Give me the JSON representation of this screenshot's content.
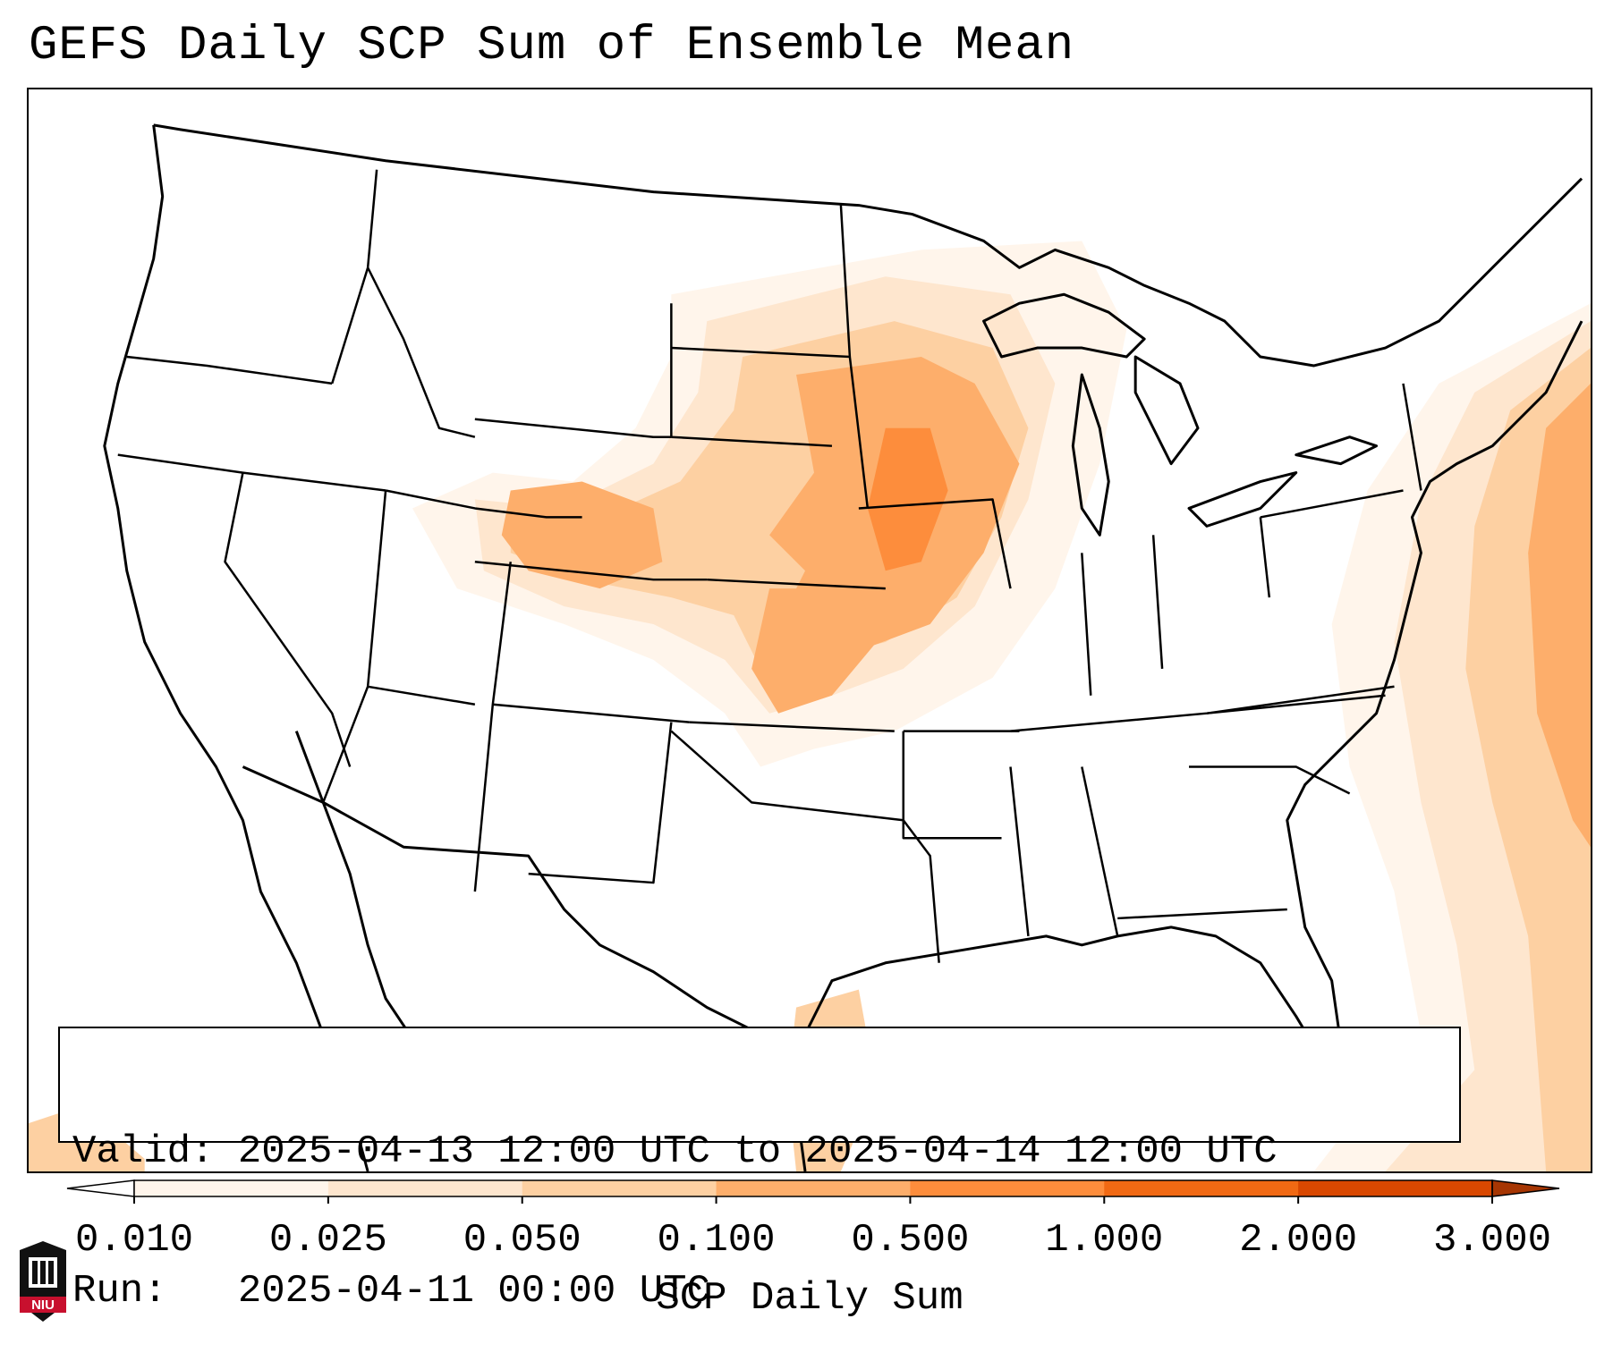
{
  "title": "GEFS Daily SCP Sum of Ensemble Mean",
  "info": {
    "valid_label": "Valid:",
    "valid_value": "2025-04-13 12:00 UTC to 2025-04-14 12:00 UTC",
    "run_label": "Run:",
    "run_value": "2025-04-11 00:00 UTC"
  },
  "colorbar": {
    "label": "SCP Daily Sum",
    "ticks": [
      "0.010",
      "0.025",
      "0.050",
      "0.100",
      "0.500",
      "1.000",
      "2.000",
      "3.000"
    ],
    "colors": [
      "#fff5eb",
      "#fee6ce",
      "#fdd0a2",
      "#fdae6b",
      "#fd8d3c",
      "#f16913",
      "#d94801",
      "#a63603"
    ],
    "extend": "both"
  },
  "logo": {
    "text": "NIU"
  }
}
